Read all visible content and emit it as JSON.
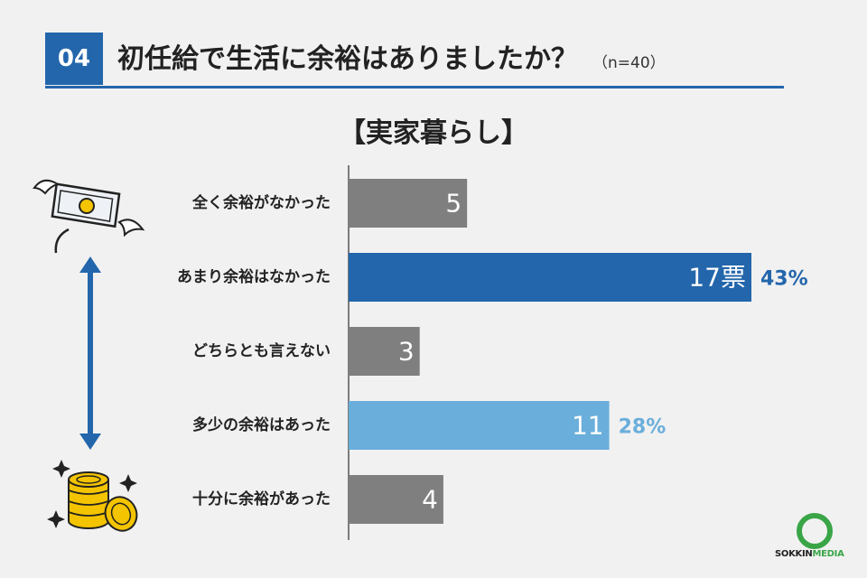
{
  "header": {
    "question_number": "04",
    "title": "初任給で生活に余裕はありましたか？",
    "sample": "（n=40）"
  },
  "logo": {
    "brand_a": "SOKKIN",
    "brand_b": "MEDIA"
  },
  "colors": {
    "blue": "#2366ab",
    "lightblue": "#6aaedb",
    "gray": "#7f7f7f",
    "green": "#3aa547"
  },
  "chart_data": {
    "type": "bar",
    "orientation": "horizontal",
    "title": "【実家暮らし】",
    "categories": [
      "全く余裕がなかった",
      "あまり余裕はなかった",
      "どちらとも言えない",
      "多少の余裕はあった",
      "十分に余裕があった"
    ],
    "values": [
      5,
      17,
      3,
      11,
      4
    ],
    "value_labels": [
      "5",
      "17票",
      "3",
      "11",
      "4"
    ],
    "percent_labels": [
      "",
      "43%",
      "",
      "28%",
      ""
    ],
    "bar_colors": [
      "#7f7f7f",
      "#2366ab",
      "#7f7f7f",
      "#6aaedb",
      "#7f7f7f"
    ],
    "percent_colors": [
      "",
      "#2366ab",
      "",
      "#6aaedb",
      ""
    ],
    "xlim": [
      0,
      17
    ],
    "grid": false
  }
}
